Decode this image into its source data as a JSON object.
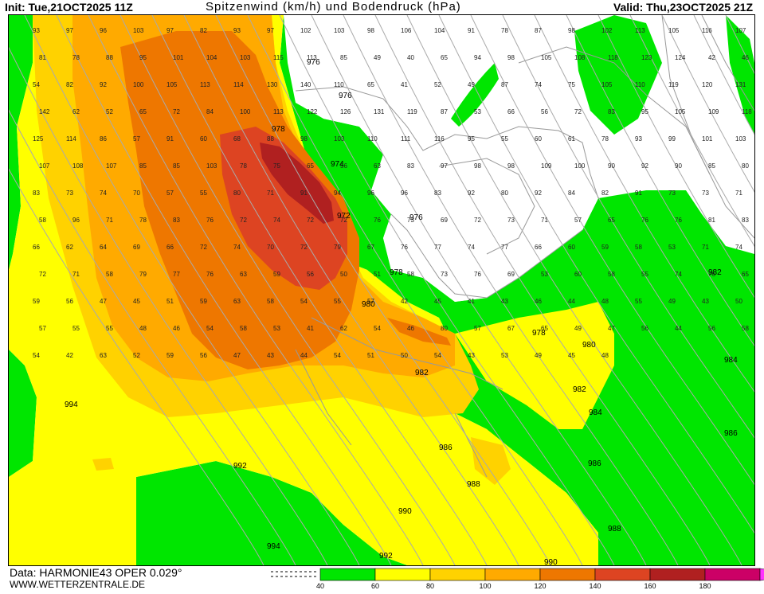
{
  "header": {
    "init": "Init: Tue,21OCT2025 11Z",
    "title": "Spitzenwind (km/h) und Bodendruck (hPa)",
    "valid": "Valid: Thu,23OCT2025 21Z"
  },
  "footer": {
    "data": "Data: HARMONIE43 OPER 0.029°",
    "site": "WWW.WETTERZENTRALE.DE"
  },
  "legend": {
    "ticks": [
      "40",
      "60",
      "80",
      "100",
      "120",
      "140",
      "160",
      "180"
    ],
    "colors": [
      "#00e600",
      "#ffff00",
      "#ffd200",
      "#ffaa00",
      "#ee7700",
      "#dd4422",
      "#b02020",
      "#cc0066",
      "#ff33ff"
    ]
  },
  "colors": {
    "land": "#ffffff",
    "sea_calm": "#ffffff",
    "coast": "#999999",
    "isobar": "#aaaaaa"
  },
  "isobar_labels": [
    {
      "text": "976"
    },
    {
      "text": "976"
    },
    {
      "text": "978"
    },
    {
      "text": "974"
    },
    {
      "text": "972"
    },
    {
      "text": "976"
    },
    {
      "text": "978"
    },
    {
      "text": "980"
    },
    {
      "text": "978"
    },
    {
      "text": "980"
    },
    {
      "text": "982"
    },
    {
      "text": "982"
    },
    {
      "text": "984"
    },
    {
      "text": "984"
    },
    {
      "text": "986"
    },
    {
      "text": "986"
    },
    {
      "text": "986"
    },
    {
      "text": "988"
    },
    {
      "text": "988"
    },
    {
      "text": "990"
    },
    {
      "text": "990"
    },
    {
      "text": "992"
    },
    {
      "text": "992"
    },
    {
      "text": "994"
    },
    {
      "text": "994"
    },
    {
      "text": "982"
    }
  ],
  "wind_values": [
    "93",
    "97",
    "96",
    "103",
    "97",
    "82",
    "93",
    "97",
    "102",
    "103",
    "98",
    "106",
    "104",
    "91",
    "78",
    "87",
    "98",
    "102",
    "113",
    "105",
    "116",
    "107",
    "81",
    "78",
    "88",
    "95",
    "101",
    "104",
    "103",
    "115",
    "113",
    "85",
    "49",
    "40",
    "65",
    "94",
    "98",
    "105",
    "108",
    "118",
    "123",
    "124",
    "42",
    "46",
    "54",
    "82",
    "92",
    "100",
    "105",
    "113",
    "114",
    "130",
    "140",
    "110",
    "65",
    "41",
    "52",
    "49",
    "87",
    "74",
    "75",
    "105",
    "110",
    "119",
    "120",
    "131",
    "142",
    "62",
    "52",
    "65",
    "72",
    "84",
    "100",
    "113",
    "122",
    "126",
    "131",
    "119",
    "87",
    "53",
    "66",
    "56",
    "72",
    "83",
    "95",
    "105",
    "109",
    "118",
    "125",
    "114",
    "86",
    "57",
    "91",
    "60",
    "68",
    "88",
    "98",
    "103",
    "110",
    "111",
    "116",
    "95",
    "55",
    "60",
    "61",
    "78",
    "93",
    "99",
    "101",
    "103",
    "107",
    "108",
    "107",
    "85",
    "85",
    "103",
    "78",
    "75",
    "65",
    "56",
    "63",
    "83",
    "97",
    "98",
    "98",
    "109",
    "100",
    "90",
    "92",
    "90",
    "85",
    "80",
    "83",
    "73",
    "74",
    "70",
    "57",
    "55",
    "80",
    "71",
    "91",
    "94",
    "96",
    "96",
    "83",
    "92",
    "80",
    "92",
    "84",
    "82",
    "91",
    "73",
    "73",
    "71",
    "58",
    "96",
    "71",
    "78",
    "83",
    "76",
    "72",
    "74",
    "72",
    "72",
    "76",
    "73",
    "69",
    "72",
    "73",
    "71",
    "57",
    "65",
    "76",
    "76",
    "81",
    "83",
    "66",
    "62",
    "64",
    "69",
    "66",
    "72",
    "74",
    "70",
    "72",
    "79",
    "67",
    "76",
    "77",
    "74",
    "77",
    "66",
    "60",
    "59",
    "58",
    "53",
    "71",
    "74",
    "72",
    "71",
    "58",
    "79",
    "77",
    "76",
    "63",
    "59",
    "56",
    "50",
    "51",
    "58",
    "73",
    "76",
    "69",
    "53",
    "60",
    "58",
    "55",
    "74",
    "76",
    "65",
    "59",
    "56",
    "47",
    "45",
    "51",
    "59",
    "63",
    "58",
    "54",
    "55",
    "57",
    "42",
    "45",
    "41",
    "43",
    "46",
    "44",
    "48",
    "55",
    "49",
    "43",
    "50",
    "57",
    "55",
    "55",
    "48",
    "46",
    "54",
    "58",
    "53",
    "41",
    "62",
    "54",
    "46",
    "80",
    "57",
    "67",
    "65",
    "49",
    "47",
    "56",
    "44",
    "56",
    "58",
    "54",
    "42",
    "63",
    "52",
    "59",
    "56",
    "47",
    "43",
    "44",
    "54",
    "51",
    "50",
    "54",
    "43",
    "53",
    "49",
    "45",
    "48"
  ]
}
